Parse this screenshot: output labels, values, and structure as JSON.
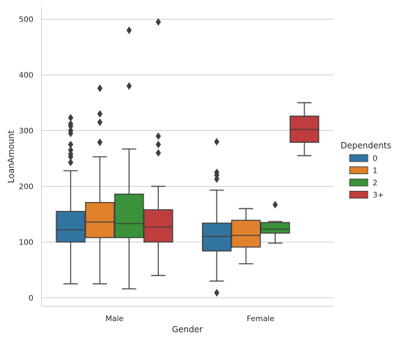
{
  "chart_data": {
    "type": "box",
    "xlabel": "Gender",
    "ylabel": "LoanAmount",
    "categories": [
      "Male",
      "Female"
    ],
    "ylim": [
      -15,
      520
    ],
    "yticks": [
      0,
      100,
      200,
      300,
      400,
      500
    ],
    "ytick_labels": [
      "0",
      "100",
      "200",
      "300",
      "400",
      "500"
    ],
    "grid": "horizontal",
    "legend": {
      "title": "Dependents",
      "position": "right"
    },
    "series": [
      {
        "name": "0",
        "color": "#3274a1",
        "boxes": [
          {
            "category": "Male",
            "whisker_low": 25,
            "q1": 100,
            "median": 122,
            "q3": 155,
            "whisker_high": 228,
            "outliers": [
              243,
              253,
              258,
              265,
              275,
              295,
              300,
              308,
              312,
              323
            ]
          },
          {
            "category": "Female",
            "whisker_low": 30,
            "q1": 84,
            "median": 110,
            "q3": 134,
            "whisker_high": 193,
            "outliers": [
              9,
              213,
              220,
              225,
              280
            ]
          }
        ]
      },
      {
        "name": "1",
        "color": "#e1812c",
        "boxes": [
          {
            "category": "Male",
            "whisker_low": 25,
            "q1": 108,
            "median": 136,
            "q3": 171,
            "whisker_high": 253,
            "outliers": [
              279,
              315,
              330,
              376
            ]
          },
          {
            "category": "Female",
            "whisker_low": 61,
            "q1": 91,
            "median": 112,
            "q3": 139,
            "whisker_high": 160,
            "outliers": []
          }
        ]
      },
      {
        "name": "2",
        "color": "#3a923a",
        "boxes": [
          {
            "category": "Male",
            "whisker_low": 16,
            "q1": 108,
            "median": 133,
            "q3": 186,
            "whisker_high": 267,
            "outliers": [
              380,
              480
            ]
          },
          {
            "category": "Female",
            "whisker_low": 98,
            "q1": 116,
            "median": 123,
            "q3": 135,
            "whisker_high": 137,
            "outliers": [
              167
            ]
          }
        ]
      },
      {
        "name": "3+",
        "color": "#c03d3e",
        "boxes": [
          {
            "category": "Male",
            "whisker_low": 40,
            "q1": 100,
            "median": 127,
            "q3": 158,
            "whisker_high": 200,
            "outliers": [
              260,
              275,
              290,
              495
            ]
          },
          {
            "category": "Female",
            "whisker_low": 255,
            "q1": 279,
            "median": 302,
            "q3": 326,
            "whisker_high": 350,
            "outliers": []
          }
        ]
      }
    ]
  }
}
